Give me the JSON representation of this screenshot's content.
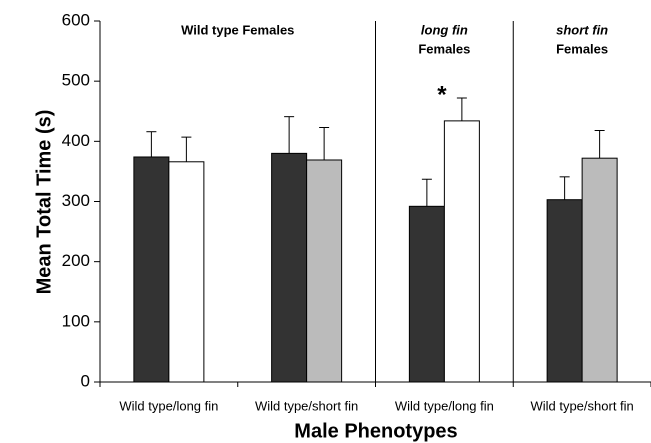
{
  "chart_data": {
    "type": "bar",
    "y_label": "Mean Total Time (s)",
    "x_label": "Male Phenotypes",
    "categories": [
      "Wild type/long fin",
      "Wild type/short fin",
      "Wild type/long fin",
      "Wild type/short fin"
    ],
    "series": [
      {
        "colors": [
          "#333333",
          "#333333",
          "#333333",
          "#333333"
        ],
        "values": [
          374,
          380,
          292,
          303
        ],
        "errors": [
          42,
          61,
          45,
          38
        ]
      },
      {
        "colors": [
          "#ffffff",
          "#bbbbbb",
          "#ffffff",
          "#bbbbbb"
        ],
        "values": [
          366,
          369,
          434,
          372
        ],
        "errors": [
          41,
          54,
          38,
          46
        ]
      }
    ],
    "panels": [
      {
        "lines": [
          "Wild type Females"
        ]
      },
      {
        "lines": [
          "long fin",
          "Females"
        ]
      },
      {
        "lines": [
          "short fin",
          "Females"
        ]
      }
    ],
    "annotations": [
      {
        "text": "*",
        "category": 2,
        "series": 1
      }
    ],
    "ylim": [
      0,
      600
    ],
    "yticks": [
      0,
      100,
      200,
      300,
      400,
      500,
      600
    ]
  }
}
